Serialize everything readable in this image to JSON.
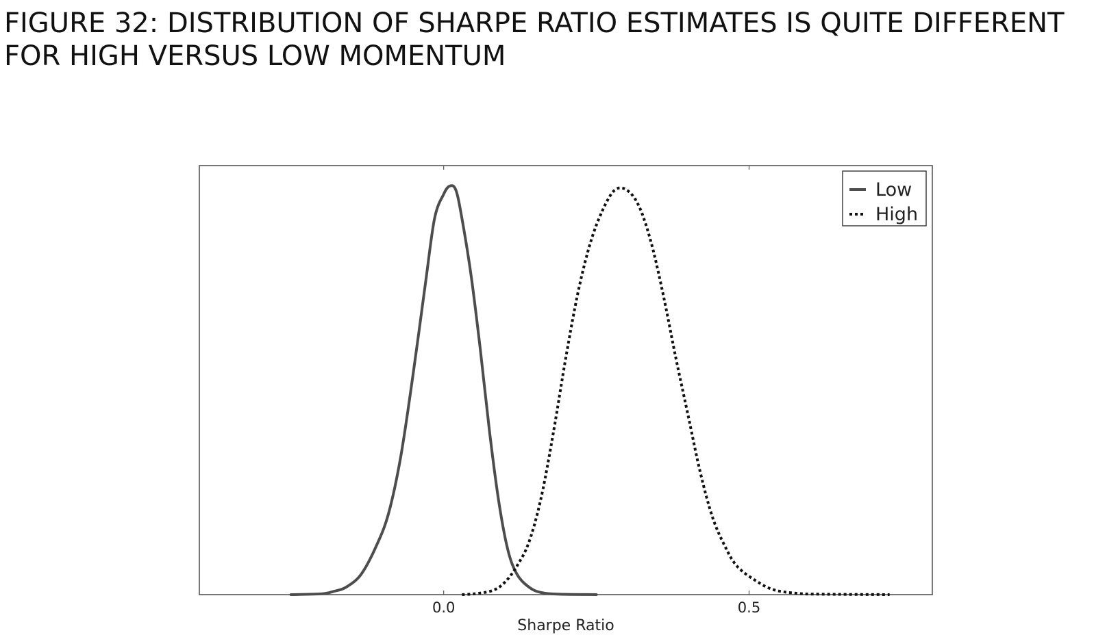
{
  "figure": {
    "title_line1": "FIGURE 32: DISTRIBUTION OF SHARPE RATIO ESTIMATES IS QUITE DIFFERENT",
    "title_line2": "FOR HIGH VERSUS LOW MOMENTUM"
  },
  "chart_data": {
    "type": "line",
    "xlabel": "Sharpe Ratio",
    "ylabel": "",
    "xlim": [
      -0.4,
      0.8
    ],
    "ylim": [
      0,
      1.05
    ],
    "x_ticks": [
      0.0,
      0.5
    ],
    "x_tick_labels": [
      "0.0",
      "0.5"
    ],
    "y_ticks_shown": false,
    "grid": false,
    "legend_position": "top-right",
    "series": [
      {
        "name": "Low",
        "style": "solid",
        "color": "#4d4d4d",
        "points": [
          [
            -0.25,
            0.0
          ],
          [
            -0.2,
            0.002
          ],
          [
            -0.18,
            0.008
          ],
          [
            -0.16,
            0.018
          ],
          [
            -0.135,
            0.05
          ],
          [
            -0.11,
            0.12
          ],
          [
            -0.09,
            0.2
          ],
          [
            -0.07,
            0.34
          ],
          [
            -0.05,
            0.54
          ],
          [
            -0.03,
            0.76
          ],
          [
            -0.015,
            0.92
          ],
          [
            0.0,
            0.98
          ],
          [
            0.01,
            1.0
          ],
          [
            0.02,
            0.99
          ],
          [
            0.03,
            0.92
          ],
          [
            0.045,
            0.78
          ],
          [
            0.06,
            0.6
          ],
          [
            0.075,
            0.4
          ],
          [
            0.09,
            0.23
          ],
          [
            0.105,
            0.11
          ],
          [
            0.12,
            0.05
          ],
          [
            0.14,
            0.018
          ],
          [
            0.16,
            0.005
          ],
          [
            0.19,
            0.001
          ],
          [
            0.25,
            0.0
          ]
        ]
      },
      {
        "name": "High",
        "style": "dotted",
        "color": "#111111",
        "points": [
          [
            0.03,
            0.0
          ],
          [
            0.05,
            0.002
          ],
          [
            0.08,
            0.01
          ],
          [
            0.1,
            0.03
          ],
          [
            0.12,
            0.07
          ],
          [
            0.14,
            0.13
          ],
          [
            0.16,
            0.24
          ],
          [
            0.18,
            0.4
          ],
          [
            0.2,
            0.58
          ],
          [
            0.22,
            0.74
          ],
          [
            0.24,
            0.86
          ],
          [
            0.26,
            0.94
          ],
          [
            0.28,
            0.99
          ],
          [
            0.3,
            0.99
          ],
          [
            0.32,
            0.95
          ],
          [
            0.34,
            0.86
          ],
          [
            0.36,
            0.73
          ],
          [
            0.38,
            0.58
          ],
          [
            0.4,
            0.44
          ],
          [
            0.42,
            0.3
          ],
          [
            0.44,
            0.19
          ],
          [
            0.46,
            0.12
          ],
          [
            0.48,
            0.07
          ],
          [
            0.51,
            0.035
          ],
          [
            0.54,
            0.012
          ],
          [
            0.58,
            0.003
          ],
          [
            0.62,
            0.001
          ],
          [
            0.73,
            0.0
          ]
        ]
      }
    ]
  }
}
